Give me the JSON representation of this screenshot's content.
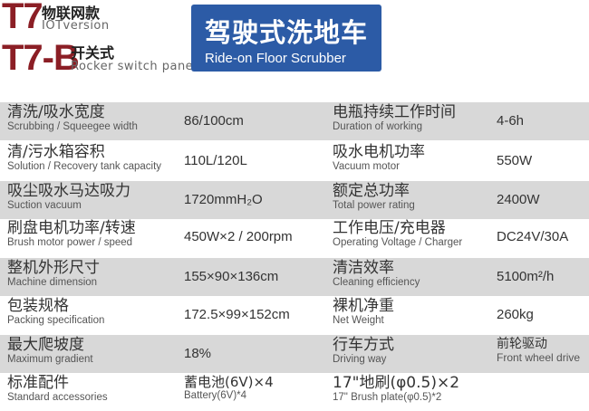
{
  "header": {
    "model1": "T7",
    "model1_cn": "物联网款",
    "model1_en": "IOTversion",
    "model2": "T7-B",
    "model2_cn": "开关式",
    "model2_en": "Rocker switch panel",
    "title_cn": "驾驶式洗地车",
    "title_en": "Ride-on Floor Scrubber",
    "accent": "#8b1e25",
    "badge_color": "#2c5ba6"
  },
  "rows": [
    {
      "l1": "清洗/吸水宽度",
      "l1en": "Scrubbing / Squeegee width",
      "v1": "86/100cm",
      "l2": "电瓶持续工作时间",
      "l2en": "Duration of working",
      "v2": "4-6h"
    },
    {
      "l1": "清/污水箱容积",
      "l1en": "Solution / Recovery tank capacity",
      "v1": "110L/120L",
      "l2": "吸水电机功率",
      "l2en": "Vacuum motor",
      "v2": "550W"
    },
    {
      "l1": "吸尘吸水马达吸力",
      "l1en": "Suction vacuum",
      "v1": "1720mmH₂O",
      "l2": "额定总功率",
      "l2en": "Total power rating",
      "v2": "2400W"
    },
    {
      "l1": "刷盘电机功率/转速",
      "l1en": "Brush motor power / speed",
      "v1": "450W×2 / 200rpm",
      "l2": "工作电压/充电器",
      "l2en": "Operating Voltage / Charger",
      "v2": "DC24V/30A"
    },
    {
      "l1": "整机外形尺寸",
      "l1en": "Machine dimension",
      "v1": "155×90×136cm",
      "l2": "清洁效率",
      "l2en": "Cleaning efficiency",
      "v2": "5100m²/h"
    },
    {
      "l1": "包装规格",
      "l1en": "Packing specification",
      "v1": "172.5×99×152cm",
      "l2": "裸机净重",
      "l2en": "Net Weight",
      "v2": "260kg"
    },
    {
      "l1": "最大爬坡度",
      "l1en": "Maximum gradient",
      "v1": "18%",
      "l2": "行车方式",
      "l2en": "Driving way",
      "v2": "前轮驱动",
      "v2en": "Front wheel drive"
    },
    {
      "l1": "标准配件",
      "l1en": "Standard accessories",
      "v1": "蓄电池(6V)×4",
      "v1en": "Battery(6V)*4",
      "l2": "17\"地刷(φ0.5)×2",
      "l2en": "17\" Brush plate(φ0.5)*2"
    }
  ]
}
